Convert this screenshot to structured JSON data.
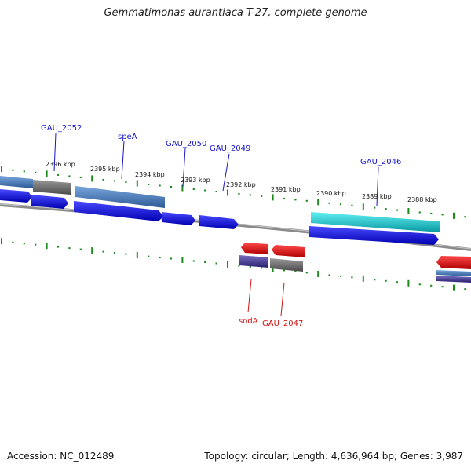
{
  "title": "Gemmatimonas aurantiaca T-27, complete genome",
  "footer": {
    "accession": "Accession: NC_012489",
    "stats": "Topology: circular; Length: 4,636,964 bp; Genes: 3,987"
  },
  "ruler": {
    "ticks": [
      "2396 kbp",
      "2395 kbp",
      "2394 kbp",
      "2393 kbp",
      "2392 kbp",
      "2391 kbp",
      "2390 kbp",
      "2389 kbp",
      "2388 kbp"
    ]
  },
  "forward_genes": [
    "GAU_2052",
    "speA",
    "GAU_2050",
    "GAU_2049",
    "GAU_2046"
  ],
  "reverse_genes": [
    "sodA",
    "GAU_2047"
  ],
  "colors": {
    "cds_blue": "#1010e0",
    "cds_red": "#e01010",
    "gene_steelblue": "#4a7fc0",
    "gene_gray": "#6a6a6a",
    "gene_cyan": "#10c8d0",
    "gene_slate": "#4a4090",
    "tick_green": "#1a8a1a",
    "backbone": "#888888"
  }
}
